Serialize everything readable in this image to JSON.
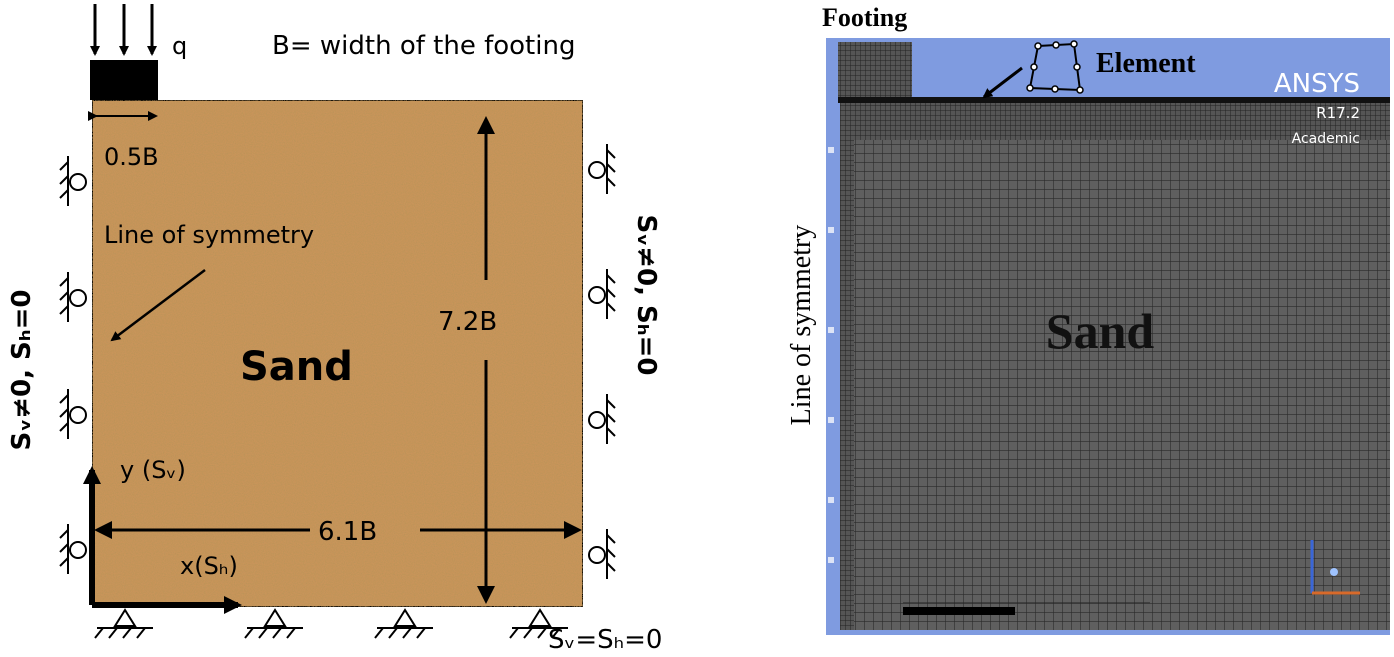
{
  "left": {
    "load": "q",
    "footing_note": "B= width of the footing",
    "half_width": "0.5B",
    "symmetry_label": "Line of symmetry",
    "left_bc": "Sᵥ≠0, Sₕ=0",
    "right_bc": "Sᵥ≠0, Sₕ=0",
    "material": "Sand",
    "depth": "7.2B",
    "y_axis": "y (Sᵥ)",
    "width": "6.1B",
    "x_axis": "x(Sₕ)",
    "bottom_bc": "Sᵥ=Sₕ=0"
  },
  "right": {
    "footing": "Footing",
    "element": "Element",
    "software": "ANSYS",
    "version": "R17.2",
    "license": "Academic",
    "symmetry_label": "Line of symmetry",
    "material": "Sand"
  }
}
